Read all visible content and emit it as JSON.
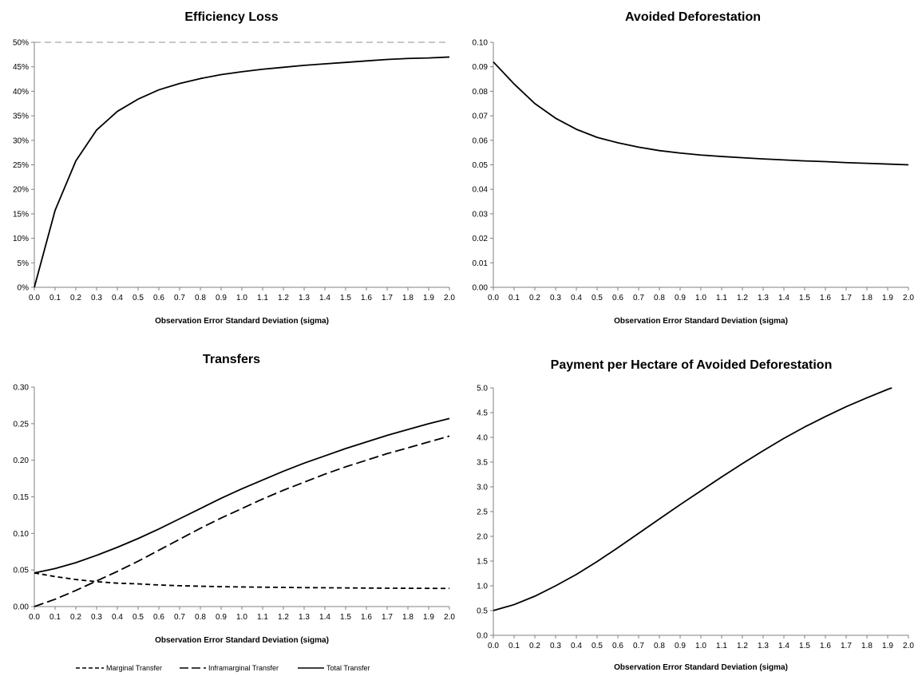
{
  "chart_data": [
    {
      "type": "line",
      "title": "Efficiency Loss",
      "xlabel": "Observation Error Standard Deviation (sigma)",
      "ylabel": "",
      "xlim": [
        0,
        2
      ],
      "ylim": [
        0,
        0.5
      ],
      "x_ticks": [
        "0.0",
        "0.1",
        "0.2",
        "0.3",
        "0.4",
        "0.5",
        "0.6",
        "0.7",
        "0.8",
        "0.9",
        "1.0",
        "1.1",
        "1.2",
        "1.3",
        "1.4",
        "1.5",
        "1.6",
        "1.7",
        "1.8",
        "1.9",
        "2.0"
      ],
      "y_ticks": [
        "0%",
        "5%",
        "10%",
        "15%",
        "20%",
        "25%",
        "30%",
        "35%",
        "40%",
        "45%",
        "50%"
      ],
      "grid": false,
      "reference_line": {
        "y": 0.5,
        "style": "dashed",
        "color": "#a6a6a6"
      },
      "x": [
        0.0,
        0.1,
        0.2,
        0.3,
        0.4,
        0.5,
        0.6,
        0.7,
        0.8,
        0.9,
        1.0,
        1.1,
        1.2,
        1.3,
        1.4,
        1.5,
        1.6,
        1.7,
        1.8,
        1.9,
        2.0
      ],
      "series": [
        {
          "style": "solid",
          "values": [
            0.0,
            0.157,
            0.258,
            0.321,
            0.359,
            0.384,
            0.403,
            0.416,
            0.426,
            0.434,
            0.44,
            0.445,
            0.449,
            0.453,
            0.456,
            0.459,
            0.462,
            0.465,
            0.467,
            0.468,
            0.47
          ]
        }
      ]
    },
    {
      "type": "line",
      "title": "Avoided Deforestation",
      "xlabel": "Observation Error Standard Deviation (sigma)",
      "ylabel": "",
      "xlim": [
        0,
        2
      ],
      "ylim": [
        0,
        0.1
      ],
      "x_ticks": [
        "0.0",
        "0.1",
        "0.2",
        "0.3",
        "0.4",
        "0.5",
        "0.6",
        "0.7",
        "0.8",
        "0.9",
        "1.0",
        "1.1",
        "1.2",
        "1.3",
        "1.4",
        "1.5",
        "1.6",
        "1.7",
        "1.8",
        "1.9",
        "2.0"
      ],
      "y_ticks": [
        "0.00",
        "0.01",
        "0.02",
        "0.03",
        "0.04",
        "0.05",
        "0.06",
        "0.07",
        "0.08",
        "0.09",
        "0.10"
      ],
      "grid": false,
      "x": [
        0.0,
        0.1,
        0.2,
        0.3,
        0.4,
        0.5,
        0.6,
        0.7,
        0.8,
        0.9,
        1.0,
        1.1,
        1.2,
        1.3,
        1.4,
        1.5,
        1.6,
        1.7,
        1.8,
        1.9,
        2.0
      ],
      "series": [
        {
          "style": "solid",
          "values": [
            0.092,
            0.083,
            0.075,
            0.069,
            0.0645,
            0.0612,
            0.059,
            0.0572,
            0.0558,
            0.0548,
            0.054,
            0.0534,
            0.0529,
            0.0524,
            0.052,
            0.0516,
            0.0513,
            0.0509,
            0.0506,
            0.0503,
            0.05
          ]
        }
      ]
    },
    {
      "type": "line",
      "title": "Transfers",
      "xlabel": "Observation Error Standard Deviation (sigma)",
      "ylabel": "",
      "xlim": [
        0,
        2
      ],
      "ylim": [
        0,
        0.3
      ],
      "x_ticks": [
        "0.0",
        "0.1",
        "0.2",
        "0.3",
        "0.4",
        "0.5",
        "0.6",
        "0.7",
        "0.8",
        "0.9",
        "1.0",
        "1.1",
        "1.2",
        "1.3",
        "1.4",
        "1.5",
        "1.6",
        "1.7",
        "1.8",
        "1.9",
        "2.0"
      ],
      "y_ticks": [
        "0.00",
        "0.05",
        "0.10",
        "0.15",
        "0.20",
        "0.25",
        "0.30"
      ],
      "grid": false,
      "legend_position": "bottom",
      "x": [
        0.0,
        0.1,
        0.2,
        0.3,
        0.4,
        0.5,
        0.6,
        0.7,
        0.8,
        0.9,
        1.0,
        1.1,
        1.2,
        1.3,
        1.4,
        1.5,
        1.6,
        1.7,
        1.8,
        1.9,
        2.0
      ],
      "series": [
        {
          "name": "Marginal Transfer",
          "style": "dashed",
          "values": [
            0.046,
            0.041,
            0.037,
            0.034,
            0.032,
            0.031,
            0.0295,
            0.0285,
            0.0278,
            0.0272,
            0.0268,
            0.0265,
            0.0262,
            0.0259,
            0.0257,
            0.0255,
            0.0253,
            0.0251,
            0.025,
            0.0249,
            0.0248
          ]
        },
        {
          "name": "Inframarginal Transfer",
          "style": "longdash",
          "values": [
            0.0,
            0.01,
            0.022,
            0.035,
            0.048,
            0.062,
            0.077,
            0.092,
            0.107,
            0.121,
            0.134,
            0.147,
            0.159,
            0.17,
            0.181,
            0.191,
            0.2,
            0.209,
            0.217,
            0.225,
            0.233
          ]
        },
        {
          "name": "Total Transfer",
          "style": "solid",
          "values": [
            0.046,
            0.052,
            0.06,
            0.07,
            0.081,
            0.093,
            0.106,
            0.12,
            0.134,
            0.148,
            0.161,
            0.173,
            0.185,
            0.196,
            0.206,
            0.216,
            0.225,
            0.234,
            0.242,
            0.25,
            0.257
          ]
        }
      ]
    },
    {
      "type": "line",
      "title": "Payment per Hectare of Avoided Deforestation",
      "xlabel": "Observation Error Standard Deviation (sigma)",
      "ylabel": "",
      "xlim": [
        0,
        2
      ],
      "ylim": [
        0,
        5
      ],
      "x_ticks": [
        "0.0",
        "0.1",
        "0.2",
        "0.3",
        "0.4",
        "0.5",
        "0.6",
        "0.7",
        "0.8",
        "0.9",
        "1.0",
        "1.1",
        "1.2",
        "1.3",
        "1.4",
        "1.5",
        "1.6",
        "1.7",
        "1.8",
        "1.9",
        "2.0"
      ],
      "y_ticks": [
        "0.0",
        "0.5",
        "1.0",
        "1.5",
        "2.0",
        "2.5",
        "3.0",
        "3.5",
        "4.0",
        "4.5",
        "5.0"
      ],
      "grid": false,
      "x": [
        0.0,
        0.1,
        0.2,
        0.3,
        0.4,
        0.5,
        0.6,
        0.7,
        0.8,
        0.9,
        1.0,
        1.1,
        1.2,
        1.3,
        1.4,
        1.5,
        1.6,
        1.7,
        1.8,
        1.9,
        1.92
      ],
      "series": [
        {
          "style": "solid",
          "values": [
            0.5,
            0.62,
            0.79,
            1.0,
            1.23,
            1.49,
            1.77,
            2.06,
            2.35,
            2.64,
            2.92,
            3.2,
            3.47,
            3.73,
            3.98,
            4.21,
            4.42,
            4.62,
            4.8,
            4.97,
            5.0
          ]
        }
      ]
    }
  ]
}
